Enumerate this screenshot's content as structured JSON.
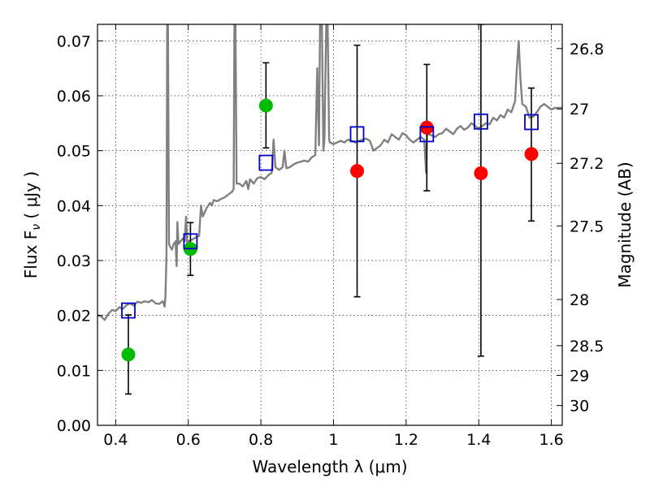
{
  "chart_data": {
    "type": "scatter",
    "xlabel": "Wavelength  λ (μm)",
    "ylabel": "Flux  F",
    "ylabel_sub": "ν",
    "ylabel_unit": "  ( μJy )",
    "y2label": "Magnitude (AB)",
    "xlim": [
      0.35,
      1.63
    ],
    "ylim": [
      0.0,
      0.073
    ],
    "grid": true,
    "xticks": [
      0.4,
      0.6,
      0.8,
      1.0,
      1.2,
      1.4,
      1.6
    ],
    "xtick_labels": [
      "0.4",
      "0.6",
      "0.8",
      "1",
      "1.2",
      "1.4",
      "1.6"
    ],
    "yticks": [
      0.0,
      0.01,
      0.02,
      0.03,
      0.04,
      0.05,
      0.06,
      0.07
    ],
    "ytick_labels": [
      "0.00",
      "0.01",
      "0.02",
      "0.03",
      "0.04",
      "0.05",
      "0.06",
      "0.07"
    ],
    "y2ticks": [
      {
        "label": "26.8",
        "flux": 0.0686
      },
      {
        "label": "27",
        "flux": 0.0576
      },
      {
        "label": "27.2",
        "flux": 0.0477
      },
      {
        "label": "27.5",
        "flux": 0.0363
      },
      {
        "label": "28",
        "flux": 0.0229
      },
      {
        "label": "28.5",
        "flux": 0.0145
      },
      {
        "label": "29",
        "flux": 0.0091
      },
      {
        "label": "30",
        "flux": 0.0036
      }
    ],
    "series": [
      {
        "marker": "circle",
        "color": "#00bb00",
        "points": [
          {
            "x": 0.435,
            "y": 0.0129,
            "ylo": 0.0057,
            "yhi": 0.0201
          },
          {
            "x": 0.606,
            "y": 0.0321,
            "ylo": 0.0273,
            "yhi": 0.0369
          },
          {
            "x": 0.814,
            "y": 0.0582,
            "ylo": 0.0505,
            "yhi": 0.066
          }
        ]
      },
      {
        "marker": "circle",
        "color": "#ff0000",
        "points": [
          {
            "x": 1.065,
            "y": 0.0463,
            "ylo": 0.0234,
            "yhi": 0.0692
          },
          {
            "x": 1.257,
            "y": 0.0542,
            "ylo": 0.0427,
            "yhi": 0.0657
          },
          {
            "x": 1.406,
            "y": 0.0459,
            "ylo": 0.0126,
            "yhi": 0.073
          },
          {
            "x": 1.545,
            "y": 0.0494,
            "ylo": 0.0372,
            "yhi": 0.0614
          }
        ]
      },
      {
        "marker": "open-square",
        "color": "#0000cc",
        "points": [
          {
            "x": 0.435,
            "y": 0.0209
          },
          {
            "x": 0.606,
            "y": 0.0335
          },
          {
            "x": 0.814,
            "y": 0.0478
          },
          {
            "x": 1.065,
            "y": 0.053
          },
          {
            "x": 1.257,
            "y": 0.053
          },
          {
            "x": 1.406,
            "y": 0.0553
          },
          {
            "x": 1.545,
            "y": 0.0552
          }
        ]
      }
    ],
    "spectrum": {
      "color": "#808080",
      "points": [
        [
          0.35,
          0.0201
        ],
        [
          0.36,
          0.0198
        ],
        [
          0.37,
          0.0192
        ],
        [
          0.38,
          0.0203
        ],
        [
          0.39,
          0.021
        ],
        [
          0.4,
          0.0208
        ],
        [
          0.41,
          0.0215
        ],
        [
          0.42,
          0.0212
        ],
        [
          0.43,
          0.0219
        ],
        [
          0.44,
          0.0222
        ],
        [
          0.45,
          0.0218
        ],
        [
          0.46,
          0.0225
        ],
        [
          0.47,
          0.0223
        ],
        [
          0.48,
          0.0226
        ],
        [
          0.49,
          0.0224
        ],
        [
          0.5,
          0.0228
        ],
        [
          0.51,
          0.0222
        ],
        [
          0.52,
          0.0221
        ],
        [
          0.53,
          0.0226
        ],
        [
          0.535,
          0.0216
        ],
        [
          0.537,
          0.0235
        ],
        [
          0.54,
          0.031
        ],
        [
          0.542,
          0.073
        ],
        [
          0.544,
          0.073
        ],
        [
          0.547,
          0.033
        ],
        [
          0.55,
          0.0325
        ],
        [
          0.555,
          0.032
        ],
        [
          0.56,
          0.033
        ],
        [
          0.565,
          0.0335
        ],
        [
          0.568,
          0.029
        ],
        [
          0.57,
          0.037
        ],
        [
          0.573,
          0.033
        ],
        [
          0.58,
          0.0336
        ],
        [
          0.585,
          0.034
        ],
        [
          0.59,
          0.0335
        ],
        [
          0.594,
          0.038
        ],
        [
          0.597,
          0.033
        ],
        [
          0.6,
          0.0335
        ],
        [
          0.61,
          0.0338
        ],
        [
          0.62,
          0.0342
        ],
        [
          0.63,
          0.0345
        ],
        [
          0.635,
          0.04
        ],
        [
          0.64,
          0.038
        ],
        [
          0.65,
          0.0395
        ],
        [
          0.66,
          0.0405
        ],
        [
          0.665,
          0.04
        ],
        [
          0.67,
          0.041
        ],
        [
          0.68,
          0.0408
        ],
        [
          0.69,
          0.0412
        ],
        [
          0.7,
          0.0415
        ],
        [
          0.71,
          0.042
        ],
        [
          0.72,
          0.0425
        ],
        [
          0.725,
          0.043
        ],
        [
          0.727,
          0.073
        ],
        [
          0.73,
          0.073
        ],
        [
          0.733,
          0.044
        ],
        [
          0.74,
          0.044
        ],
        [
          0.75,
          0.0435
        ],
        [
          0.76,
          0.0445
        ],
        [
          0.765,
          0.043
        ],
        [
          0.77,
          0.0448
        ],
        [
          0.78,
          0.044
        ],
        [
          0.79,
          0.045
        ],
        [
          0.8,
          0.0452
        ],
        [
          0.81,
          0.0448
        ],
        [
          0.82,
          0.0455
        ],
        [
          0.83,
          0.046
        ],
        [
          0.835,
          0.052
        ],
        [
          0.84,
          0.047
        ],
        [
          0.85,
          0.0465
        ],
        [
          0.86,
          0.047
        ],
        [
          0.865,
          0.05
        ],
        [
          0.87,
          0.0468
        ],
        [
          0.88,
          0.047
        ],
        [
          0.89,
          0.0475
        ],
        [
          0.9,
          0.0478
        ],
        [
          0.91,
          0.048
        ],
        [
          0.92,
          0.0482
        ],
        [
          0.93,
          0.048
        ],
        [
          0.94,
          0.0488
        ],
        [
          0.95,
          0.0492
        ],
        [
          0.955,
          0.065
        ],
        [
          0.96,
          0.051
        ],
        [
          0.963,
          0.073
        ],
        [
          0.968,
          0.073
        ],
        [
          0.972,
          0.05
        ],
        [
          0.975,
          0.052
        ],
        [
          0.98,
          0.073
        ],
        [
          0.984,
          0.073
        ],
        [
          0.988,
          0.052
        ],
        [
          0.99,
          0.0515
        ],
        [
          1.0,
          0.0512
        ],
        [
          1.01,
          0.0515
        ],
        [
          1.02,
          0.0518
        ],
        [
          1.03,
          0.0515
        ],
        [
          1.04,
          0.052
        ],
        [
          1.05,
          0.0518
        ],
        [
          1.06,
          0.0515
        ],
        [
          1.07,
          0.0518
        ],
        [
          1.08,
          0.052
        ],
        [
          1.09,
          0.0522
        ],
        [
          1.1,
          0.0518
        ],
        [
          1.11,
          0.05
        ],
        [
          1.12,
          0.0505
        ],
        [
          1.13,
          0.051
        ],
        [
          1.14,
          0.052
        ],
        [
          1.15,
          0.0515
        ],
        [
          1.16,
          0.053
        ],
        [
          1.17,
          0.0525
        ],
        [
          1.18,
          0.052
        ],
        [
          1.19,
          0.0532
        ],
        [
          1.2,
          0.0528
        ],
        [
          1.21,
          0.052
        ],
        [
          1.22,
          0.0515
        ],
        [
          1.23,
          0.052
        ],
        [
          1.24,
          0.0525
        ],
        [
          1.25,
          0.052
        ],
        [
          1.255,
          0.046
        ],
        [
          1.258,
          0.0545
        ],
        [
          1.26,
          0.053
        ],
        [
          1.27,
          0.0528
        ],
        [
          1.28,
          0.0525
        ],
        [
          1.29,
          0.053
        ],
        [
          1.3,
          0.0532
        ],
        [
          1.31,
          0.054
        ],
        [
          1.32,
          0.0535
        ],
        [
          1.33,
          0.053
        ],
        [
          1.34,
          0.054
        ],
        [
          1.35,
          0.0545
        ],
        [
          1.36,
          0.0538
        ],
        [
          1.37,
          0.0542
        ],
        [
          1.38,
          0.055
        ],
        [
          1.39,
          0.0545
        ],
        [
          1.4,
          0.054
        ],
        [
          1.41,
          0.0545
        ],
        [
          1.42,
          0.055
        ],
        [
          1.43,
          0.0548
        ],
        [
          1.44,
          0.056
        ],
        [
          1.45,
          0.0555
        ],
        [
          1.46,
          0.0565
        ],
        [
          1.47,
          0.056
        ],
        [
          1.48,
          0.0575
        ],
        [
          1.49,
          0.057
        ],
        [
          1.5,
          0.059
        ],
        [
          1.505,
          0.065
        ],
        [
          1.51,
          0.07
        ],
        [
          1.515,
          0.063
        ],
        [
          1.52,
          0.0585
        ],
        [
          1.53,
          0.058
        ],
        [
          1.54,
          0.056
        ],
        [
          1.55,
          0.0562
        ],
        [
          1.56,
          0.057
        ],
        [
          1.57,
          0.058
        ],
        [
          1.58,
          0.0585
        ],
        [
          1.59,
          0.058
        ],
        [
          1.6,
          0.0575
        ],
        [
          1.61,
          0.0578
        ],
        [
          1.62,
          0.0578
        ],
        [
          1.63,
          0.0578
        ]
      ]
    }
  }
}
